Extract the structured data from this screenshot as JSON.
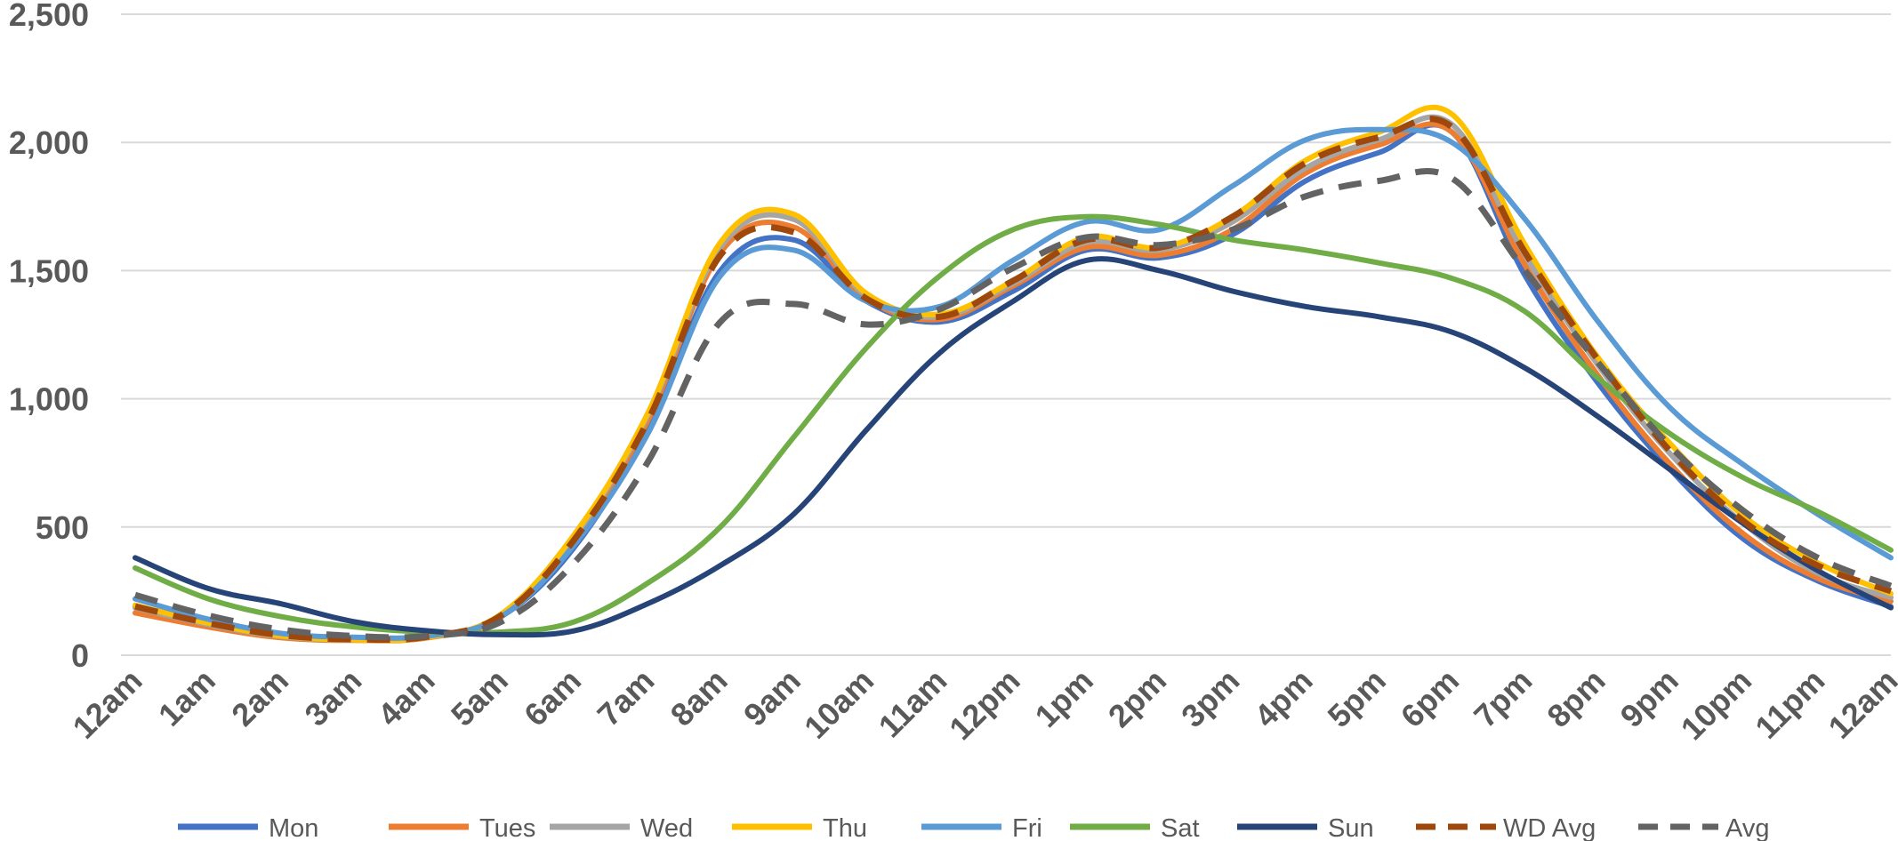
{
  "chart_data": {
    "type": "line",
    "title": "",
    "xlabel": "",
    "ylabel": "",
    "ylim": [
      0,
      2500
    ],
    "yticks": [
      "0",
      "500",
      "1,000",
      "1,500",
      "2,000",
      "2,500"
    ],
    "ytick_values": [
      0,
      500,
      1000,
      1500,
      2000,
      2500
    ],
    "categories": [
      "12am",
      "1am",
      "2am",
      "3am",
      "4am",
      "5am",
      "6am",
      "7am",
      "8am",
      "9am",
      "10am",
      "11am",
      "12pm",
      "1pm",
      "2pm",
      "3pm",
      "4pm",
      "5pm",
      "6pm",
      "7pm",
      "8pm",
      "9pm",
      "10pm",
      "11pm",
      "12am"
    ],
    "grid": true,
    "legend_position": "bottom",
    "series": [
      {
        "name": "Mon",
        "color": "#4472c4",
        "dash": false,
        "values": [
          190,
          130,
          80,
          65,
          75,
          150,
          420,
          880,
          1500,
          1620,
          1380,
          1300,
          1420,
          1580,
          1550,
          1640,
          1850,
          1960,
          2040,
          1480,
          1060,
          720,
          450,
          290,
          190
        ]
      },
      {
        "name": "Tues",
        "color": "#ed7d31",
        "dash": false,
        "values": [
          165,
          110,
          68,
          58,
          68,
          150,
          450,
          910,
          1570,
          1670,
          1390,
          1310,
          1440,
          1590,
          1560,
          1660,
          1880,
          1990,
          2040,
          1520,
          1090,
          740,
          470,
          300,
          210
        ]
      },
      {
        "name": "Wed",
        "color": "#a5a5a5",
        "dash": false,
        "values": [
          185,
          120,
          72,
          60,
          70,
          155,
          460,
          930,
          1590,
          1700,
          1400,
          1320,
          1450,
          1610,
          1580,
          1690,
          1900,
          2010,
          2070,
          1560,
          1130,
          780,
          510,
          320,
          225
        ]
      },
      {
        "name": "Thu",
        "color": "#ffc000",
        "dash": false,
        "values": [
          195,
          125,
          75,
          60,
          70,
          160,
          470,
          940,
          1610,
          1720,
          1410,
          1330,
          1460,
          1630,
          1590,
          1710,
          1930,
          2040,
          2110,
          1600,
          1160,
          820,
          540,
          360,
          240
        ]
      },
      {
        "name": "Fri",
        "color": "#5b9bd5",
        "dash": false,
        "values": [
          220,
          140,
          85,
          70,
          75,
          150,
          430,
          860,
          1480,
          1580,
          1380,
          1360,
          1540,
          1690,
          1660,
          1830,
          2010,
          2050,
          2000,
          1700,
          1300,
          960,
          740,
          550,
          380
        ]
      },
      {
        "name": "Sat",
        "color": "#70ad47",
        "dash": false,
        "values": [
          340,
          220,
          150,
          110,
          90,
          90,
          130,
          280,
          500,
          850,
          1200,
          1480,
          1660,
          1710,
          1680,
          1620,
          1580,
          1530,
          1470,
          1340,
          1080,
          860,
          690,
          560,
          410
        ]
      },
      {
        "name": "Sun",
        "color": "#264478",
        "dash": false,
        "values": [
          380,
          260,
          200,
          130,
          95,
          80,
          95,
          200,
          350,
          550,
          880,
          1180,
          1380,
          1540,
          1500,
          1420,
          1360,
          1320,
          1260,
          1120,
          930,
          720,
          510,
          330,
          185
        ]
      },
      {
        "name": "WD Avg",
        "color": "#9e480e",
        "dash": true,
        "values": [
          190,
          125,
          78,
          62,
          72,
          155,
          450,
          910,
          1560,
          1650,
          1390,
          1320,
          1460,
          1620,
          1590,
          1710,
          1920,
          2020,
          2060,
          1570,
          1150,
          790,
          520,
          350,
          250
        ]
      },
      {
        "name": "Avg",
        "color": "#636363",
        "dash": true,
        "values": [
          235,
          155,
          100,
          75,
          75,
          130,
          360,
          750,
          1300,
          1370,
          1290,
          1350,
          1510,
          1630,
          1600,
          1660,
          1790,
          1850,
          1860,
          1500,
          1140,
          810,
          560,
          380,
          270
        ]
      }
    ]
  }
}
